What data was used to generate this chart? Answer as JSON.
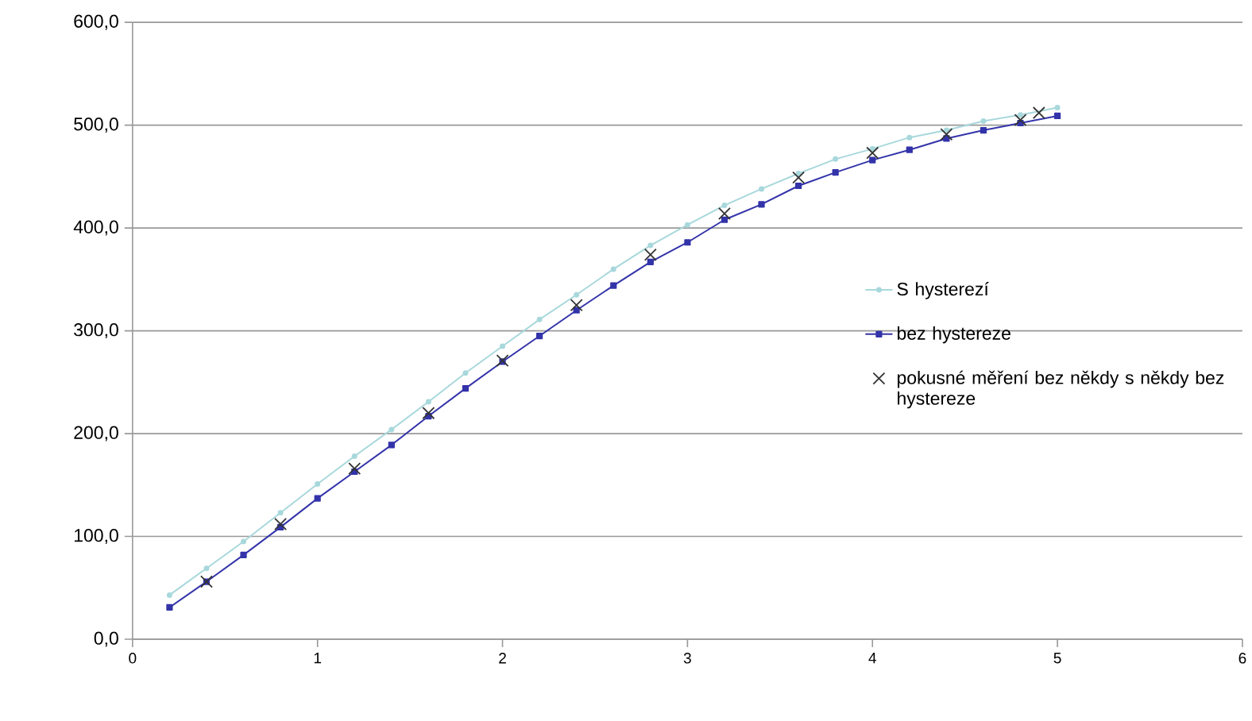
{
  "chart_data": {
    "type": "line",
    "x": [
      0.2,
      0.4,
      0.6,
      0.8,
      1.0,
      1.2,
      1.4,
      1.6,
      1.8,
      2.0,
      2.2,
      2.4,
      2.6,
      2.8,
      3.0,
      3.2,
      3.4,
      3.6,
      3.8,
      4.0,
      4.2,
      4.4,
      4.6,
      4.8,
      5.0
    ],
    "series": [
      {
        "name": "S hysterezí",
        "color": "#a8d8dc",
        "marker": "circle",
        "values": [
          43,
          69,
          95,
          123,
          151,
          178,
          204,
          231,
          259,
          285,
          311,
          335,
          360,
          383,
          403,
          422,
          438,
          453,
          467,
          477,
          488,
          495,
          504,
          510,
          517
        ]
      },
      {
        "name": "bez hystereze",
        "color": "#3333aa",
        "marker": "square",
        "values": [
          31,
          56,
          82,
          109,
          137,
          163,
          189,
          217,
          244,
          270,
          295,
          320,
          344,
          367,
          386,
          408,
          423,
          441,
          454,
          466,
          476,
          487,
          495,
          502,
          509
        ]
      },
      {
        "name": "pokusné měření bez někdy s někdy bez hystereze",
        "color": "#333333",
        "type": "scatter",
        "marker": "cross",
        "x": [
          0.4,
          0.8,
          1.2,
          1.6,
          2.0,
          2.4,
          2.8,
          3.2,
          3.6,
          4.0,
          4.4,
          4.8,
          4.9
        ],
        "values": [
          56,
          112,
          166,
          220,
          271,
          325,
          374,
          414,
          449,
          473,
          491,
          505,
          512
        ]
      }
    ],
    "xlim": [
      0,
      6
    ],
    "xticks": [
      0,
      1,
      2,
      3,
      4,
      5,
      6
    ],
    "ylim": [
      0,
      600
    ],
    "yticks": [
      {
        "value": 0,
        "label": "0,0"
      },
      {
        "value": 100,
        "label": "100,0"
      },
      {
        "value": 200,
        "label": "200,0"
      },
      {
        "value": 300,
        "label": "300,0"
      },
      {
        "value": 400,
        "label": "400,0"
      },
      {
        "value": 500,
        "label": "500,0"
      },
      {
        "value": 600,
        "label": "600,0"
      }
    ],
    "grid": "y",
    "legend": "right"
  }
}
